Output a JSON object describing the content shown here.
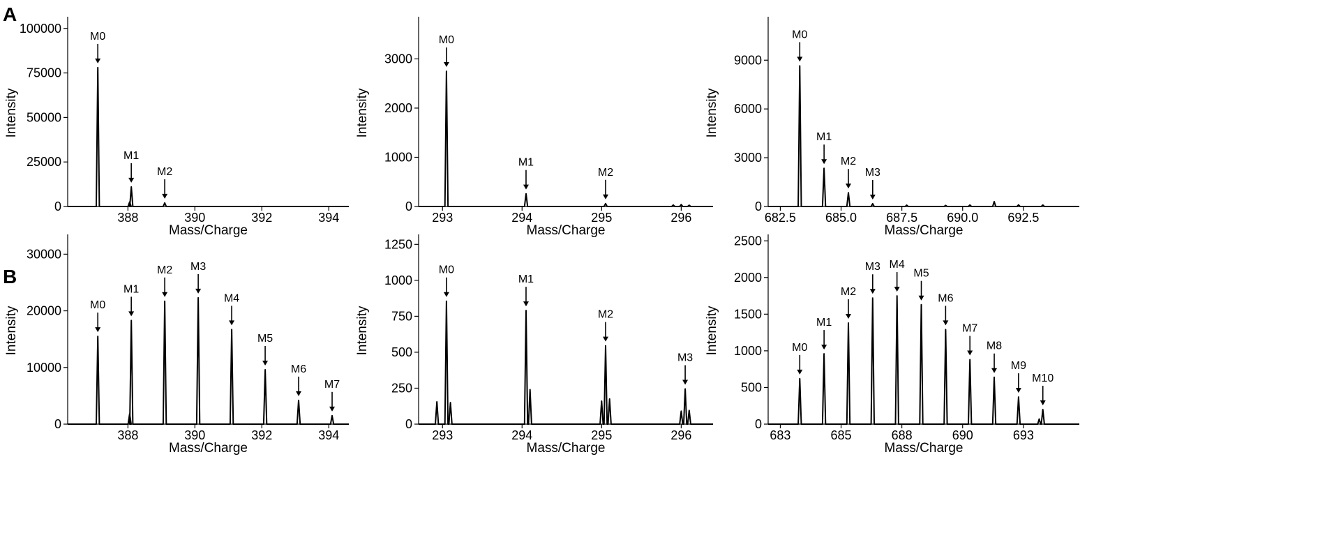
{
  "figure": {
    "panel_labels": [
      "A",
      "B"
    ]
  },
  "chart_data": [
    {
      "type": "line",
      "panel": "A",
      "xlabel": "Mass/Charge",
      "ylabel": "Intensity",
      "xlim": [
        386.2,
        394.6
      ],
      "ylim": [
        0,
        105000
      ],
      "xticks": [
        388,
        390,
        392,
        394
      ],
      "yticks": [
        0,
        25000,
        50000,
        75000,
        100000
      ],
      "tick_decimals": 0,
      "peaks": [
        {
          "label": "M0",
          "x": 387.1,
          "y": 78000
        },
        {
          "label": "M1",
          "x": 388.1,
          "y": 11000
        },
        {
          "label": "M2",
          "x": 389.1,
          "y": 2000
        }
      ],
      "minor_peaks": [
        {
          "x": 388.05,
          "y": 2500
        }
      ]
    },
    {
      "type": "line",
      "panel": "A",
      "xlabel": "Mass/Charge",
      "ylabel": "Intensity",
      "xlim": [
        292.7,
        296.4
      ],
      "ylim": [
        0,
        3800
      ],
      "xticks": [
        293,
        294,
        295,
        296
      ],
      "yticks": [
        0,
        1000,
        2000,
        3000
      ],
      "tick_decimals": 0,
      "peaks": [
        {
          "label": "M0",
          "x": 293.05,
          "y": 2750
        },
        {
          "label": "M1",
          "x": 294.05,
          "y": 260
        },
        {
          "label": "M2",
          "x": 295.05,
          "y": 60
        }
      ],
      "minor_peaks": [
        {
          "x": 295.9,
          "y": 30
        },
        {
          "x": 296.0,
          "y": 40
        },
        {
          "x": 296.1,
          "y": 25
        }
      ]
    },
    {
      "type": "line",
      "panel": "A",
      "xlabel": "Mass/Charge",
      "ylabel": "Intensity",
      "xlim": [
        682.0,
        694.8
      ],
      "ylim": [
        0,
        11500
      ],
      "xticks": [
        682.5,
        685.0,
        687.5,
        690.0,
        692.5
      ],
      "yticks": [
        0,
        3000,
        6000,
        9000
      ],
      "tick_decimals": 1,
      "peaks": [
        {
          "label": "M0",
          "x": 683.3,
          "y": 8650
        },
        {
          "label": "M1",
          "x": 684.3,
          "y": 2350
        },
        {
          "label": "M2",
          "x": 685.3,
          "y": 850
        },
        {
          "label": "M3",
          "x": 686.3,
          "y": 170
        }
      ],
      "minor_peaks": [
        {
          "x": 687.7,
          "y": 80
        },
        {
          "x": 689.3,
          "y": 70
        },
        {
          "x": 690.3,
          "y": 90
        },
        {
          "x": 691.3,
          "y": 300
        },
        {
          "x": 692.3,
          "y": 100
        },
        {
          "x": 693.3,
          "y": 90
        }
      ]
    },
    {
      "type": "line",
      "panel": "B",
      "xlabel": "Mass/Charge",
      "ylabel": "Intensity",
      "xlim": [
        386.2,
        394.6
      ],
      "ylim": [
        0,
        33000
      ],
      "xticks": [
        388,
        390,
        392,
        394
      ],
      "yticks": [
        0,
        10000,
        20000,
        30000
      ],
      "tick_decimals": 0,
      "peaks": [
        {
          "label": "M0",
          "x": 387.1,
          "y": 15500
        },
        {
          "label": "M1",
          "x": 388.1,
          "y": 18300
        },
        {
          "label": "M2",
          "x": 389.1,
          "y": 21700
        },
        {
          "label": "M3",
          "x": 390.1,
          "y": 22300
        },
        {
          "label": "M4",
          "x": 391.1,
          "y": 16700
        },
        {
          "label": "M5",
          "x": 392.1,
          "y": 9600
        },
        {
          "label": "M6",
          "x": 393.1,
          "y": 4200
        },
        {
          "label": "M7",
          "x": 394.1,
          "y": 1500
        }
      ],
      "minor_peaks": [
        {
          "x": 388.05,
          "y": 1800
        }
      ]
    },
    {
      "type": "line",
      "panel": "B",
      "xlabel": "Mass/Charge",
      "ylabel": "Intensity",
      "xlim": [
        292.7,
        296.4
      ],
      "ylim": [
        0,
        1300
      ],
      "xticks": [
        293,
        294,
        295,
        296
      ],
      "yticks": [
        0,
        250,
        500,
        750,
        1000,
        1250
      ],
      "tick_decimals": 0,
      "peaks": [
        {
          "label": "M0",
          "x": 293.05,
          "y": 855
        },
        {
          "label": "M1",
          "x": 294.05,
          "y": 790
        },
        {
          "label": "M2",
          "x": 295.05,
          "y": 545
        },
        {
          "label": "M3",
          "x": 296.05,
          "y": 245
        }
      ],
      "minor_peaks": [
        {
          "x": 292.93,
          "y": 155
        },
        {
          "x": 293.1,
          "y": 150
        },
        {
          "x": 294.1,
          "y": 240
        },
        {
          "x": 295.0,
          "y": 160
        },
        {
          "x": 295.1,
          "y": 175
        },
        {
          "x": 296.0,
          "y": 90
        },
        {
          "x": 296.1,
          "y": 95
        }
      ]
    },
    {
      "type": "line",
      "panel": "B",
      "xlabel": "Mass/Charge",
      "ylabel": "Intensity",
      "xlim": [
        682.0,
        694.8
      ],
      "ylim": [
        0,
        2550
      ],
      "xticks": [
        682.5,
        685.0,
        687.5,
        690.0,
        692.5
      ],
      "yticks": [
        0,
        500,
        1000,
        1500,
        2000,
        2500
      ],
      "tick_decimals": 0,
      "peaks": [
        {
          "label": "M0",
          "x": 683.3,
          "y": 620
        },
        {
          "label": "M1",
          "x": 684.3,
          "y": 960
        },
        {
          "label": "M2",
          "x": 685.3,
          "y": 1380
        },
        {
          "label": "M3",
          "x": 686.3,
          "y": 1720
        },
        {
          "label": "M4",
          "x": 687.3,
          "y": 1750
        },
        {
          "label": "M5",
          "x": 688.3,
          "y": 1630
        },
        {
          "label": "M6",
          "x": 689.3,
          "y": 1290
        },
        {
          "label": "M7",
          "x": 690.3,
          "y": 880
        },
        {
          "label": "M8",
          "x": 691.3,
          "y": 640
        },
        {
          "label": "M9",
          "x": 692.3,
          "y": 370
        },
        {
          "label": "M10",
          "x": 693.3,
          "y": 200
        }
      ],
      "minor_peaks": [
        {
          "x": 693.15,
          "y": 70
        }
      ]
    }
  ]
}
